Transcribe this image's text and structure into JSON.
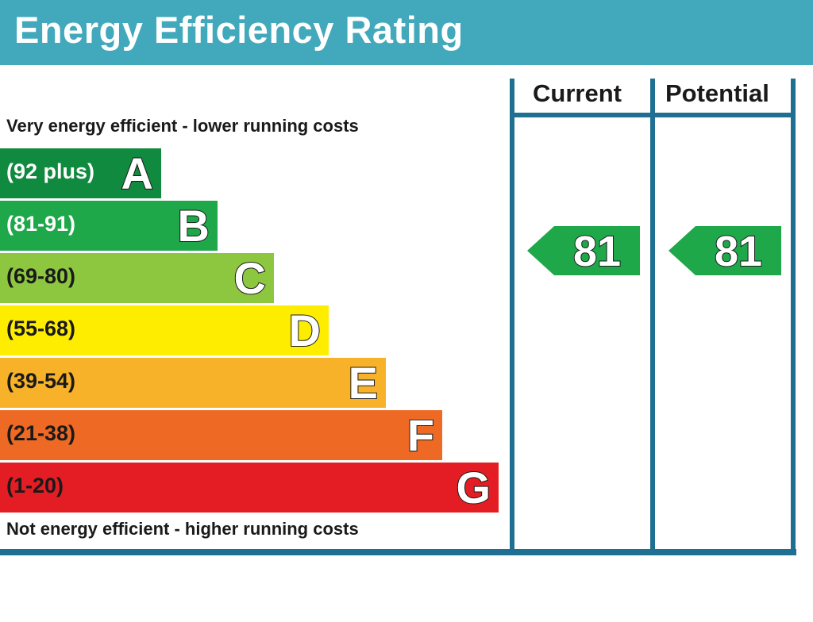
{
  "header": {
    "title": "Energy Efficiency Rating"
  },
  "columns": {
    "current": "Current",
    "potential": "Potential"
  },
  "captions": {
    "top": "Very energy efficient - lower running costs",
    "bottom": "Not energy efficient - higher running costs"
  },
  "chart_data": {
    "type": "bar",
    "title": "Energy Efficiency Rating",
    "bands": [
      {
        "letter": "A",
        "range": "(92 plus)",
        "min": 92,
        "max": 100,
        "color": "#0f8a3e",
        "text_color": "#ffffff"
      },
      {
        "letter": "B",
        "range": "(81-91)",
        "min": 81,
        "max": 91,
        "color": "#1ea84a",
        "text_color": "#ffffff"
      },
      {
        "letter": "C",
        "range": "(69-80)",
        "min": 69,
        "max": 80,
        "color": "#8dc63f",
        "text_color": "#1a1a1a"
      },
      {
        "letter": "D",
        "range": "(55-68)",
        "min": 55,
        "max": 68,
        "color": "#ffed00",
        "text_color": "#1a1a1a"
      },
      {
        "letter": "E",
        "range": "(39-54)",
        "min": 39,
        "max": 54,
        "color": "#f7b229",
        "text_color": "#1a1a1a"
      },
      {
        "letter": "F",
        "range": "(21-38)",
        "min": 21,
        "max": 38,
        "color": "#ee6a24",
        "text_color": "#1a1a1a"
      },
      {
        "letter": "G",
        "range": "(1-20)",
        "min": 1,
        "max": 20,
        "color": "#e31d23",
        "text_color": "#1a1a1a"
      }
    ],
    "current": {
      "value": 81,
      "band": "B",
      "color": "#1ea84a"
    },
    "potential": {
      "value": 81,
      "band": "B",
      "color": "#1ea84a"
    }
  }
}
